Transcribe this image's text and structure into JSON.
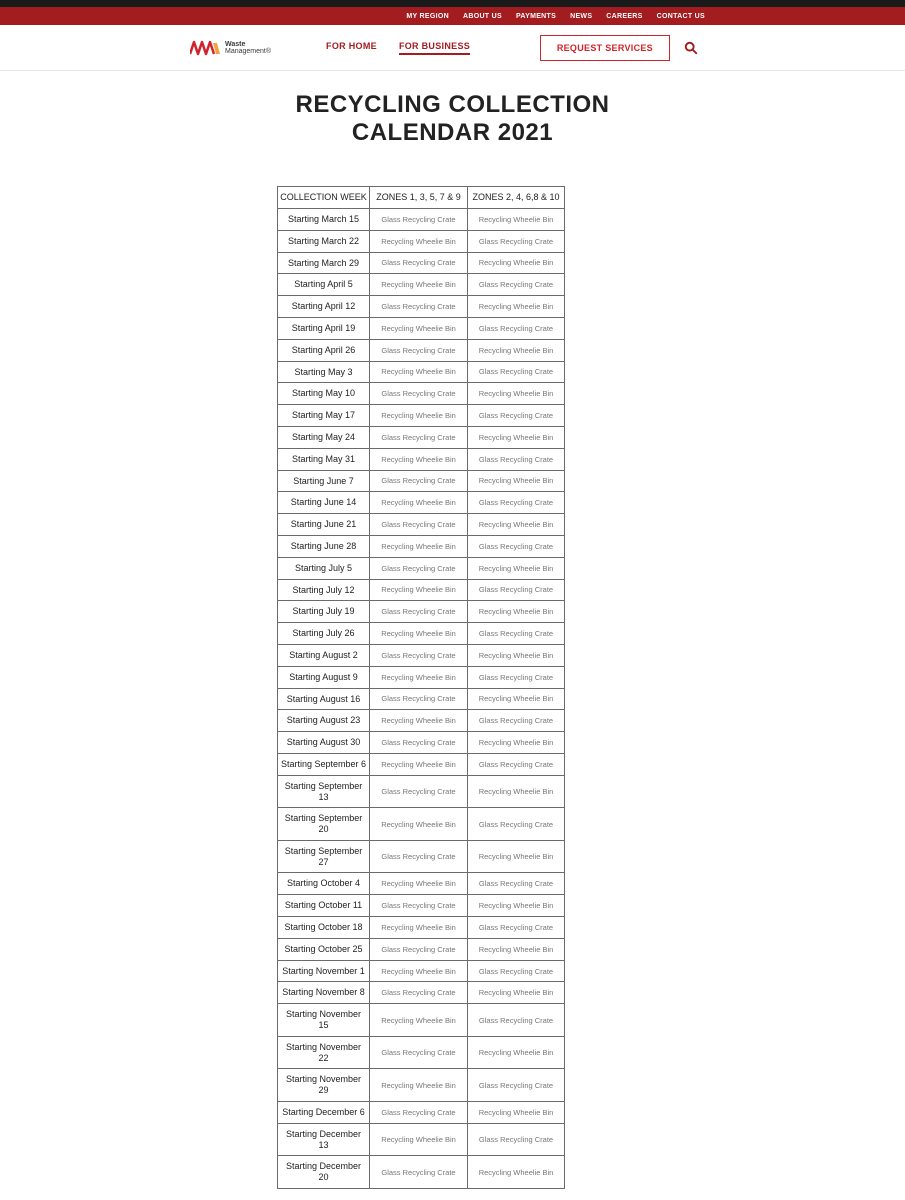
{
  "topbar": {
    "links": [
      "MY REGION",
      "ABOUT US",
      "PAYMENTS",
      "NEWS",
      "CAREERS",
      "CONTACT US"
    ]
  },
  "brand": {
    "line1": "Waste",
    "line2": "Management®"
  },
  "nav": {
    "home": "FOR HOME",
    "business": "FOR BUSINESS",
    "request": "REQUEST SERVICES"
  },
  "page_title_line1": "RECYCLING COLLECTION",
  "page_title_line2": "CALENDAR 2021",
  "table": {
    "headers": [
      "COLLECTION WEEK",
      "ZONES 1, 3, 5, 7 & 9",
      "ZONES 2, 4, 6,8 & 10"
    ],
    "glass": "Glass Recycling Crate",
    "wheelie": "Recycling Wheelie Bin",
    "rows": [
      {
        "week": "Starting March 15",
        "a": "glass",
        "b": "wheelie"
      },
      {
        "week": "Starting March 22",
        "a": "wheelie",
        "b": "glass"
      },
      {
        "week": "Starting March 29",
        "a": "glass",
        "b": "wheelie"
      },
      {
        "week": "Starting April 5",
        "a": "wheelie",
        "b": "glass"
      },
      {
        "week": "Starting April 12",
        "a": "glass",
        "b": "wheelie"
      },
      {
        "week": "Starting April 19",
        "a": "wheelie",
        "b": "glass"
      },
      {
        "week": "Starting April 26",
        "a": "glass",
        "b": "wheelie"
      },
      {
        "week": "Starting May 3",
        "a": "wheelie",
        "b": "glass"
      },
      {
        "week": "Starting May 10",
        "a": "glass",
        "b": "wheelie"
      },
      {
        "week": "Starting May 17",
        "a": "wheelie",
        "b": "glass"
      },
      {
        "week": "Starting May 24",
        "a": "glass",
        "b": "wheelie"
      },
      {
        "week": "Starting May 31",
        "a": "wheelie",
        "b": "glass"
      },
      {
        "week": "Starting June 7",
        "a": "glass",
        "b": "wheelie"
      },
      {
        "week": "Starting June 14",
        "a": "wheelie",
        "b": "glass"
      },
      {
        "week": "Starting June 21",
        "a": "glass",
        "b": "wheelie"
      },
      {
        "week": "Starting June 28",
        "a": "wheelie",
        "b": "glass"
      },
      {
        "week": "Starting July 5",
        "a": "glass",
        "b": "wheelie"
      },
      {
        "week": "Starting July 12",
        "a": "wheelie",
        "b": "glass"
      },
      {
        "week": "Starting July 19",
        "a": "glass",
        "b": "wheelie"
      },
      {
        "week": "Starting July 26",
        "a": "wheelie",
        "b": "glass"
      },
      {
        "week": "Starting August 2",
        "a": "glass",
        "b": "wheelie"
      },
      {
        "week": "Starting August 9",
        "a": "wheelie",
        "b": "glass"
      },
      {
        "week": "Starting August 16",
        "a": "glass",
        "b": "wheelie"
      },
      {
        "week": "Starting August 23",
        "a": "wheelie",
        "b": "glass"
      },
      {
        "week": "Starting August 30",
        "a": "glass",
        "b": "wheelie"
      },
      {
        "week": "Starting September 6",
        "a": "wheelie",
        "b": "glass"
      },
      {
        "week": "Starting September 13",
        "a": "glass",
        "b": "wheelie"
      },
      {
        "week": "Starting September 20",
        "a": "wheelie",
        "b": "glass"
      },
      {
        "week": "Starting September 27",
        "a": "glass",
        "b": "wheelie"
      },
      {
        "week": "Starting October 4",
        "a": "wheelie",
        "b": "glass"
      },
      {
        "week": "Starting October 11",
        "a": "glass",
        "b": "wheelie"
      },
      {
        "week": "Starting October 18",
        "a": "wheelie",
        "b": "glass"
      },
      {
        "week": "Starting October 25",
        "a": "glass",
        "b": "wheelie"
      },
      {
        "week": "Starting November 1",
        "a": "wheelie",
        "b": "glass"
      },
      {
        "week": "Starting November 8",
        "a": "glass",
        "b": "wheelie"
      },
      {
        "week": "Starting November 15",
        "a": "wheelie",
        "b": "glass"
      },
      {
        "week": "Starting November 22",
        "a": "glass",
        "b": "wheelie"
      },
      {
        "week": "Starting November 29",
        "a": "wheelie",
        "b": "glass"
      },
      {
        "week": "Starting December 6",
        "a": "glass",
        "b": "wheelie"
      },
      {
        "week": "Starting December 13",
        "a": "wheelie",
        "b": "glass"
      },
      {
        "week": "Starting December 20",
        "a": "glass",
        "b": "wheelie"
      }
    ]
  }
}
